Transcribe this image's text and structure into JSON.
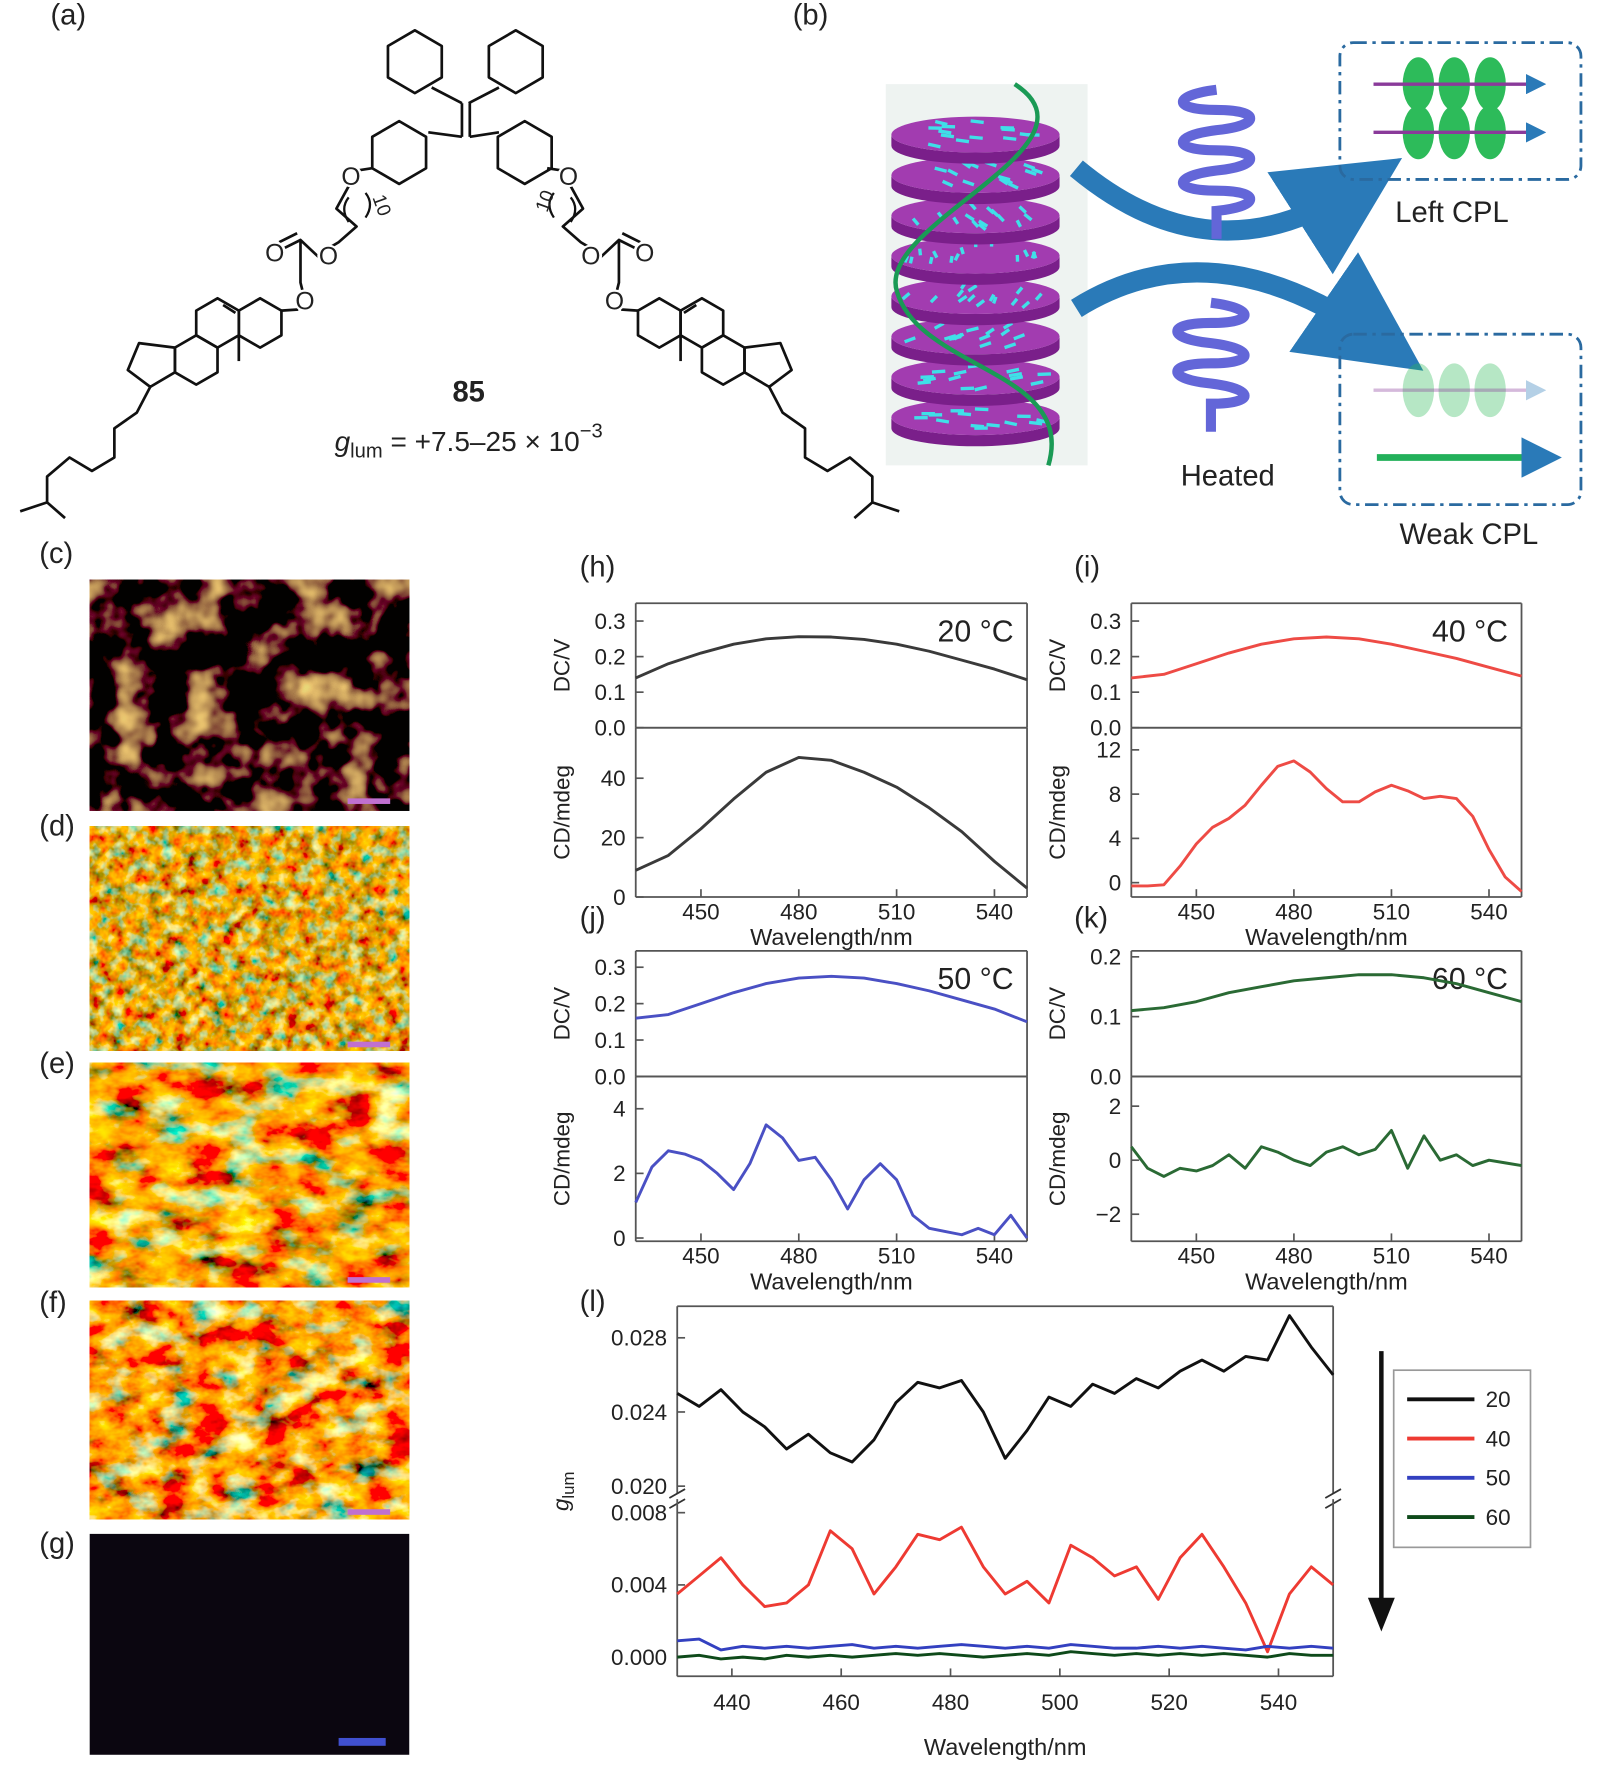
{
  "figure": {
    "panel_labels": [
      "(a)",
      "(b)",
      "(c)",
      "(d)",
      "(e)",
      "(f)",
      "(g)"
    ],
    "compound": "85",
    "glum_main": "g",
    "glum_sub": "lum",
    "glum_rest": " = +7.5–25 × 10",
    "glum_sup": "−3",
    "chain_index": [
      "10",
      "10"
    ],
    "atoms": [
      "O",
      "O",
      "O",
      "O",
      "O",
      "O",
      "O",
      "O"
    ],
    "left_cpl": "Left CPL",
    "heated": "Heated",
    "weak_cpl": "Weak CPL"
  },
  "chart_data": [
    {
      "type": "line",
      "panel": "(h)",
      "annotation": "20 °C",
      "ylabel": "DC/V",
      "xlim": [
        430,
        550
      ],
      "ylim": [
        0,
        0.35
      ],
      "yticks": [
        {
          "value": 0,
          "label": "0.0"
        },
        0.1,
        0.2,
        0.3
      ],
      "x": [
        430,
        440,
        450,
        460,
        470,
        480,
        490,
        500,
        510,
        520,
        530,
        540,
        550
      ],
      "series": [
        {
          "color": "#3a3a3a",
          "values": [
            0.14,
            0.18,
            0.21,
            0.235,
            0.25,
            0.256,
            0.255,
            0.248,
            0.235,
            0.215,
            0.19,
            0.165,
            0.135
          ]
        }
      ]
    },
    {
      "type": "line",
      "ylabel": "CD/mdeg",
      "xlabel": "Wavelength/nm",
      "xlim": [
        430,
        550
      ],
      "xticks": [
        450,
        480,
        510,
        540
      ],
      "ylim": [
        0,
        57
      ],
      "yticks": [
        0,
        20,
        40
      ],
      "x": [
        430,
        440,
        450,
        460,
        470,
        480,
        490,
        500,
        510,
        520,
        530,
        540,
        550
      ],
      "series": [
        {
          "color": "#3a3a3a",
          "values": [
            9,
            14,
            23,
            33,
            42,
            47,
            46,
            42,
            37,
            30,
            22,
            12,
            3
          ]
        }
      ]
    },
    {
      "type": "line",
      "panel": "(i)",
      "annotation": "40 °C",
      "ylabel": "DC/V",
      "xlim": [
        430,
        550
      ],
      "ylim": [
        0,
        0.35
      ],
      "yticks": [
        {
          "value": 0,
          "label": "0.0"
        },
        0.1,
        0.2,
        0.3
      ],
      "x": [
        430,
        440,
        450,
        460,
        470,
        480,
        490,
        500,
        510,
        520,
        530,
        540,
        550
      ],
      "series": [
        {
          "color": "#ee4b45",
          "values": [
            0.14,
            0.15,
            0.18,
            0.21,
            0.235,
            0.25,
            0.255,
            0.25,
            0.235,
            0.215,
            0.195,
            0.17,
            0.145
          ]
        }
      ]
    },
    {
      "type": "line",
      "ylabel": "CD/mdeg",
      "xlabel": "Wavelength/nm",
      "xlim": [
        430,
        550
      ],
      "xticks": [
        450,
        480,
        510,
        540
      ],
      "ylim": [
        -1.3,
        14
      ],
      "yticks": [
        0,
        4,
        8,
        12
      ],
      "x": [
        430,
        435,
        440,
        445,
        450,
        455,
        460,
        465,
        470,
        475,
        480,
        485,
        490,
        495,
        500,
        505,
        510,
        515,
        520,
        525,
        530,
        535,
        540,
        545,
        550
      ],
      "series": [
        {
          "color": "#ee4b45",
          "values": [
            -0.3,
            -0.3,
            -0.2,
            1.5,
            3.5,
            5,
            5.8,
            7,
            8.8,
            10.5,
            11,
            10,
            8.5,
            7.3,
            7.3,
            8.2,
            8.8,
            8.3,
            7.6,
            7.8,
            7.6,
            6,
            3,
            0.5,
            -0.8
          ]
        }
      ]
    },
    {
      "type": "line",
      "panel": "(j)",
      "annotation": "50 °C",
      "ylabel": "DC/V",
      "xlim": [
        430,
        550
      ],
      "ylim": [
        0,
        0.345
      ],
      "yticks": [
        {
          "value": 0,
          "label": "0.0"
        },
        0.1,
        0.2,
        0.3
      ],
      "x": [
        430,
        440,
        450,
        460,
        470,
        480,
        490,
        500,
        510,
        520,
        530,
        540,
        550
      ],
      "series": [
        {
          "color": "#4a50c4",
          "values": [
            0.16,
            0.17,
            0.2,
            0.23,
            0.255,
            0.27,
            0.275,
            0.27,
            0.255,
            0.235,
            0.21,
            0.185,
            0.15
          ]
        }
      ]
    },
    {
      "type": "line",
      "ylabel": "CD/mdeg",
      "xlabel": "Wavelength/nm",
      "xlim": [
        430,
        550
      ],
      "xticks": [
        450,
        480,
        510,
        540
      ],
      "ylim": [
        -0.1,
        5
      ],
      "yticks": [
        0,
        2,
        4
      ],
      "x": [
        430,
        435,
        440,
        445,
        450,
        455,
        460,
        465,
        470,
        475,
        480,
        485,
        490,
        495,
        500,
        505,
        510,
        515,
        520,
        525,
        530,
        535,
        540,
        545,
        550
      ],
      "series": [
        {
          "color": "#4a50c4",
          "values": [
            1.1,
            2.2,
            2.7,
            2.6,
            2.4,
            2.0,
            1.5,
            2.3,
            3.5,
            3.1,
            2.4,
            2.5,
            1.8,
            0.9,
            1.8,
            2.3,
            1.8,
            0.7,
            0.3,
            0.2,
            0.1,
            0.3,
            0.1,
            0.7,
            0
          ]
        }
      ]
    },
    {
      "type": "line",
      "panel": "(k)",
      "annotation": "60 °C",
      "ylabel": "DC/V",
      "xlim": [
        430,
        550
      ],
      "ylim": [
        0,
        0.21
      ],
      "yticks": [
        {
          "value": 0,
          "label": "0.0"
        },
        0.1,
        0.2
      ],
      "x": [
        430,
        440,
        450,
        460,
        470,
        480,
        490,
        500,
        510,
        520,
        530,
        540,
        550
      ],
      "series": [
        {
          "color": "#2a6a34",
          "values": [
            0.11,
            0.115,
            0.125,
            0.14,
            0.15,
            0.16,
            0.165,
            0.17,
            0.17,
            0.165,
            0.155,
            0.14,
            0.125
          ]
        }
      ]
    },
    {
      "type": "line",
      "ylabel": "CD/mdeg",
      "xlabel": "Wavelength/nm",
      "xlim": [
        430,
        550
      ],
      "xticks": [
        450,
        480,
        510,
        540
      ],
      "ylim": [
        -3,
        3.1
      ],
      "yticks": [
        {
          "value": -2,
          "label": "−2"
        },
        0,
        2
      ],
      "x": [
        430,
        435,
        440,
        445,
        450,
        455,
        460,
        465,
        470,
        475,
        480,
        485,
        490,
        495,
        500,
        505,
        510,
        515,
        520,
        525,
        530,
        535,
        540,
        545,
        550
      ],
      "series": [
        {
          "color": "#2a6a34",
          "values": [
            0.5,
            -0.3,
            -0.6,
            -0.3,
            -0.4,
            -0.2,
            0.2,
            -0.3,
            0.5,
            0.3,
            0,
            -0.2,
            0.3,
            0.5,
            0.2,
            0.4,
            1.1,
            -0.3,
            0.9,
            0,
            0.2,
            -0.2,
            0,
            -0.1,
            -0.2
          ]
        }
      ]
    },
    {
      "type": "line",
      "panel": "(l)",
      "ylabel": "g",
      "ylabel_sub": "lum",
      "xlim": [
        430,
        550
      ],
      "ylim": [
        0.0193,
        0.0297
      ],
      "yticks": [
        {
          "value": 0.02,
          "label": "0.020"
        },
        0.024,
        0.028
      ],
      "x": [
        430,
        434,
        438,
        442,
        446,
        450,
        454,
        458,
        462,
        466,
        470,
        474,
        478,
        482,
        486,
        490,
        494,
        498,
        502,
        506,
        510,
        514,
        518,
        522,
        526,
        530,
        534,
        538,
        542,
        546,
        550
      ],
      "series": [
        {
          "name": "20",
          "color": "#111111",
          "values": [
            0.025,
            0.0243,
            0.0252,
            0.024,
            0.0232,
            0.022,
            0.0228,
            0.0218,
            0.0213,
            0.0225,
            0.0245,
            0.0256,
            0.0253,
            0.0257,
            0.024,
            0.0215,
            0.023,
            0.0248,
            0.0243,
            0.0255,
            0.025,
            0.0258,
            0.0253,
            0.0262,
            0.0268,
            0.0262,
            0.027,
            0.0268,
            0.0292,
            0.0275,
            0.026
          ]
        }
      ]
    },
    {
      "type": "line",
      "xlabel": "Wavelength/nm",
      "xlim": [
        430,
        550
      ],
      "xticks": [
        440,
        460,
        480,
        500,
        520,
        540
      ],
      "ylim": [
        -0.00106,
        0.00875
      ],
      "yticks": [
        {
          "value": 0,
          "label": "0.000"
        },
        0.004,
        0.008
      ],
      "x": [
        430,
        434,
        438,
        442,
        446,
        450,
        454,
        458,
        462,
        466,
        470,
        474,
        478,
        482,
        486,
        490,
        494,
        498,
        502,
        506,
        510,
        514,
        518,
        522,
        526,
        530,
        534,
        538,
        542,
        546,
        550
      ],
      "series": [
        {
          "name": "40",
          "color": "#ee3a32",
          "values": [
            0.0035,
            0.0045,
            0.0055,
            0.004,
            0.0028,
            0.003,
            0.004,
            0.007,
            0.006,
            0.0035,
            0.005,
            0.0068,
            0.0065,
            0.0072,
            0.005,
            0.0035,
            0.0042,
            0.003,
            0.0062,
            0.0055,
            0.0045,
            0.005,
            0.0032,
            0.0055,
            0.0068,
            0.005,
            0.003,
            0.0003,
            0.0035,
            0.005,
            0.004
          ]
        },
        {
          "name": "50",
          "color": "#3340c0",
          "values": [
            0.0009,
            0.001,
            0.0004,
            0.0006,
            0.0005,
            0.0006,
            0.0005,
            0.0006,
            0.0007,
            0.0005,
            0.0006,
            0.0005,
            0.0006,
            0.0007,
            0.0006,
            0.0005,
            0.0006,
            0.0005,
            0.0007,
            0.0006,
            0.0005,
            0.0005,
            0.0006,
            0.0005,
            0.0006,
            0.0005,
            0.0004,
            0.0006,
            0.0005,
            0.0006,
            0.0005
          ]
        },
        {
          "name": "60",
          "color": "#0e4a1a",
          "values": [
            0,
            0.0001,
            -0.0001,
            0,
            -0.0001,
            0.0001,
            0,
            0.0001,
            0,
            0.0001,
            0.0002,
            0.0001,
            0.0002,
            0.0001,
            0,
            0.0001,
            0.0002,
            0.0001,
            0.0003,
            0.0002,
            0.0001,
            0.0002,
            0.0001,
            0.0002,
            0.0001,
            0.0002,
            0.0001,
            0,
            0.0002,
            0.0001,
            0.0001
          ]
        }
      ]
    }
  ]
}
